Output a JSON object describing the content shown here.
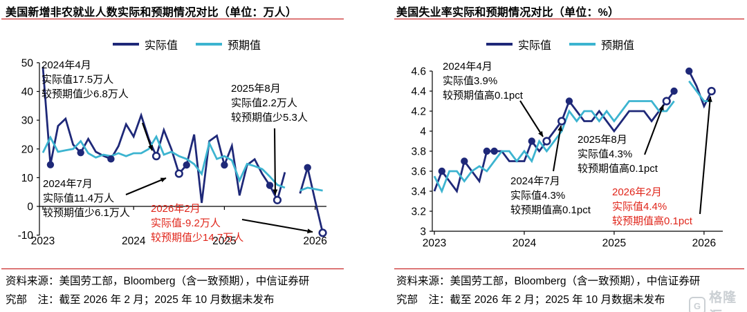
{
  "colors": {
    "actual": "#1e2878",
    "expected": "#3cb4d0",
    "annotation_red": "#e0251a",
    "rule_red": "#c00000",
    "arrow": "#000000"
  },
  "watermark": {
    "icon": "gelonghui-logo",
    "text": "格隆汇"
  },
  "sources": [
    {
      "line1": "资料来源：美国劳工部，Bloomberg（含一致预期），中信证券研",
      "line2": "究部　注：截至 2026 年 2 月；2025 年 10 月数据未发布"
    },
    {
      "line1": "资料来源：美国劳工部，Bloomberg（含一致预期），中信证券研",
      "line2": "究部　注：截至 2026 年 2 月；2025 年 10 月数据未发布"
    }
  ],
  "chart_data": [
    {
      "type": "line",
      "title": "美国新增非农就业人数实际和预期情况对比（单位：万人）",
      "x_start": "2023-01",
      "x_end": "2026-02",
      "x_tick_labels": [
        "2023",
        "2024",
        "2025",
        "2026"
      ],
      "ylim": [
        -10,
        50
      ],
      "yticks": [
        50,
        40,
        30,
        20,
        10,
        0,
        -10
      ],
      "missing_month": "2025-10",
      "series": [
        {
          "name": "实际值",
          "role": "actual",
          "values": [
            48.5,
            14.5,
            28,
            30.5,
            21.5,
            18.7,
            23.5,
            19,
            17.6,
            16.5,
            21,
            28.6,
            24.3,
            31.7,
            23.5,
            17.5,
            26.6,
            19.9,
            11.4,
            14.4,
            25,
            1.2,
            22.7,
            24.6,
            14.4,
            21.1,
            3.8,
            14.4,
            16.4,
            11.3,
            7.3,
            2.2,
            11.9,
            null,
            4.5,
            13.5,
            2,
            -9.2
          ],
          "filled_markers": [
            1,
            5,
            9,
            19,
            24,
            30,
            35
          ],
          "open_markers": [
            15,
            18,
            31,
            37
          ]
        },
        {
          "name": "预期值",
          "role": "expected",
          "values": [
            18.7,
            24,
            19,
            19.5,
            20,
            22.7,
            18.5,
            17,
            18,
            17.5,
            18.5,
            17.5,
            18.5,
            18.5,
            20,
            24.3,
            18,
            19,
            17.5,
            16.5,
            14.7,
            11.3,
            22,
            16.5,
            17.5,
            16,
            9,
            14.8,
            14,
            13,
            10.4,
            7.5,
            6.5,
            null,
            5.5,
            6.5,
            6,
            5.5
          ],
          "filled_markers": [],
          "open_markers": []
        }
      ],
      "annotations": [
        {
          "lines": [
            "2024年4月",
            "实际值17.5万人",
            "较预期值少6.8万人"
          ],
          "color": "#000000",
          "target_month": 15
        },
        {
          "lines": [
            "2024年7月",
            "实际值11.4万人",
            "较预期值少6.1万人"
          ],
          "color": "#000000",
          "target_month": 18
        },
        {
          "lines": [
            "2025年8月",
            "实际值2.2万人",
            "较预期值少5.3人"
          ],
          "color": "#000000",
          "target_month": 31
        },
        {
          "lines": [
            "2026年2月",
            "实际值-9.2万人",
            "较预期值少14.7万人"
          ],
          "color": "#e0251a",
          "target_month": 37
        }
      ]
    },
    {
      "type": "line",
      "title": "美国失业率实际和预期情况对比（单位：%）",
      "x_start": "2023-01",
      "x_end": "2026-02",
      "x_tick_labels": [
        "2023",
        "2024",
        "2025",
        "2026"
      ],
      "ylim": [
        3,
        4.6
      ],
      "yticks": [
        4.6,
        4.4,
        4.2,
        4,
        3.8,
        3.6,
        3.4,
        3.2,
        3
      ],
      "missing_month": "2025-10",
      "series": [
        {
          "name": "实际值",
          "role": "actual",
          "values": [
            3.4,
            3.6,
            3.5,
            3.4,
            3.7,
            3.6,
            3.5,
            3.8,
            3.8,
            3.8,
            3.7,
            3.7,
            3.7,
            3.9,
            3.8,
            3.9,
            4.0,
            4.1,
            4.3,
            4.2,
            4.1,
            4.1,
            4.2,
            4.1,
            4.0,
            4.1,
            4.2,
            4.2,
            4.2,
            4.1,
            4.2,
            4.3,
            4.4,
            null,
            4.6,
            4.45,
            4.25,
            4.4
          ],
          "filled_markers": [
            1,
            4,
            7,
            8,
            13,
            18,
            32,
            34
          ],
          "open_markers": [
            15,
            17,
            31,
            37
          ]
        },
        {
          "name": "预期值",
          "role": "expected",
          "values": [
            3.55,
            3.4,
            3.6,
            3.6,
            3.5,
            3.6,
            3.65,
            3.6,
            3.7,
            3.8,
            3.8,
            3.7,
            3.8,
            3.7,
            3.9,
            3.8,
            3.9,
            4.0,
            4.2,
            4.1,
            4.2,
            4.2,
            4.1,
            4.2,
            4.1,
            4.2,
            4.3,
            4.3,
            4.3,
            4.3,
            4.2,
            4.2,
            4.3,
            null,
            4.5,
            4.4,
            4.3,
            4.3
          ],
          "filled_markers": [],
          "open_markers": []
        }
      ],
      "annotations": [
        {
          "lines": [
            "2024年4月",
            "实际值3.9%",
            "较预期值高0.1pct"
          ],
          "color": "#000000",
          "target_month": 15
        },
        {
          "lines": [
            "2024年7月",
            "实际值4.3%",
            "较预期值高0.1pct"
          ],
          "color": "#000000",
          "target_month": 18
        },
        {
          "lines": [
            "2025年8月",
            "实际值4.3%",
            "较预期值高0.1pct"
          ],
          "color": "#000000",
          "target_month": 31
        },
        {
          "lines": [
            "2026年2月",
            "实际值4.4%",
            "较预期值高0.1pct"
          ],
          "color": "#e0251a",
          "target_month": 37
        }
      ]
    }
  ]
}
